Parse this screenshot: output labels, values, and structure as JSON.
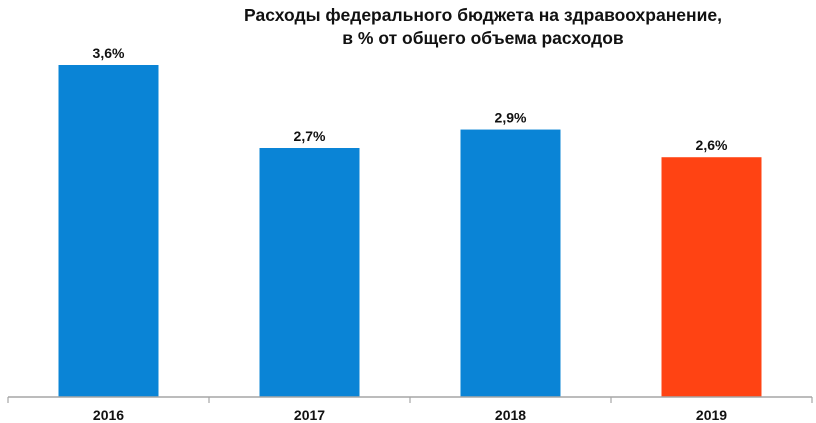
{
  "chart_data": {
    "type": "bar",
    "title_lines": [
      "Расходы федерального бюджета на здравоохранение,",
      "в % от общего объема расходов"
    ],
    "categories": [
      "2016",
      "2017",
      "2018",
      "2019"
    ],
    "values": [
      3.6,
      2.7,
      2.9,
      2.6
    ],
    "data_labels": [
      "3,6%",
      "2,7%",
      "2,9%",
      "2,6%"
    ],
    "bar_colors": [
      "#0a84d6",
      "#0a84d6",
      "#0a84d6",
      "#ff4313"
    ],
    "ylim": [
      0,
      3.6
    ],
    "grid": false,
    "legend": "none"
  }
}
